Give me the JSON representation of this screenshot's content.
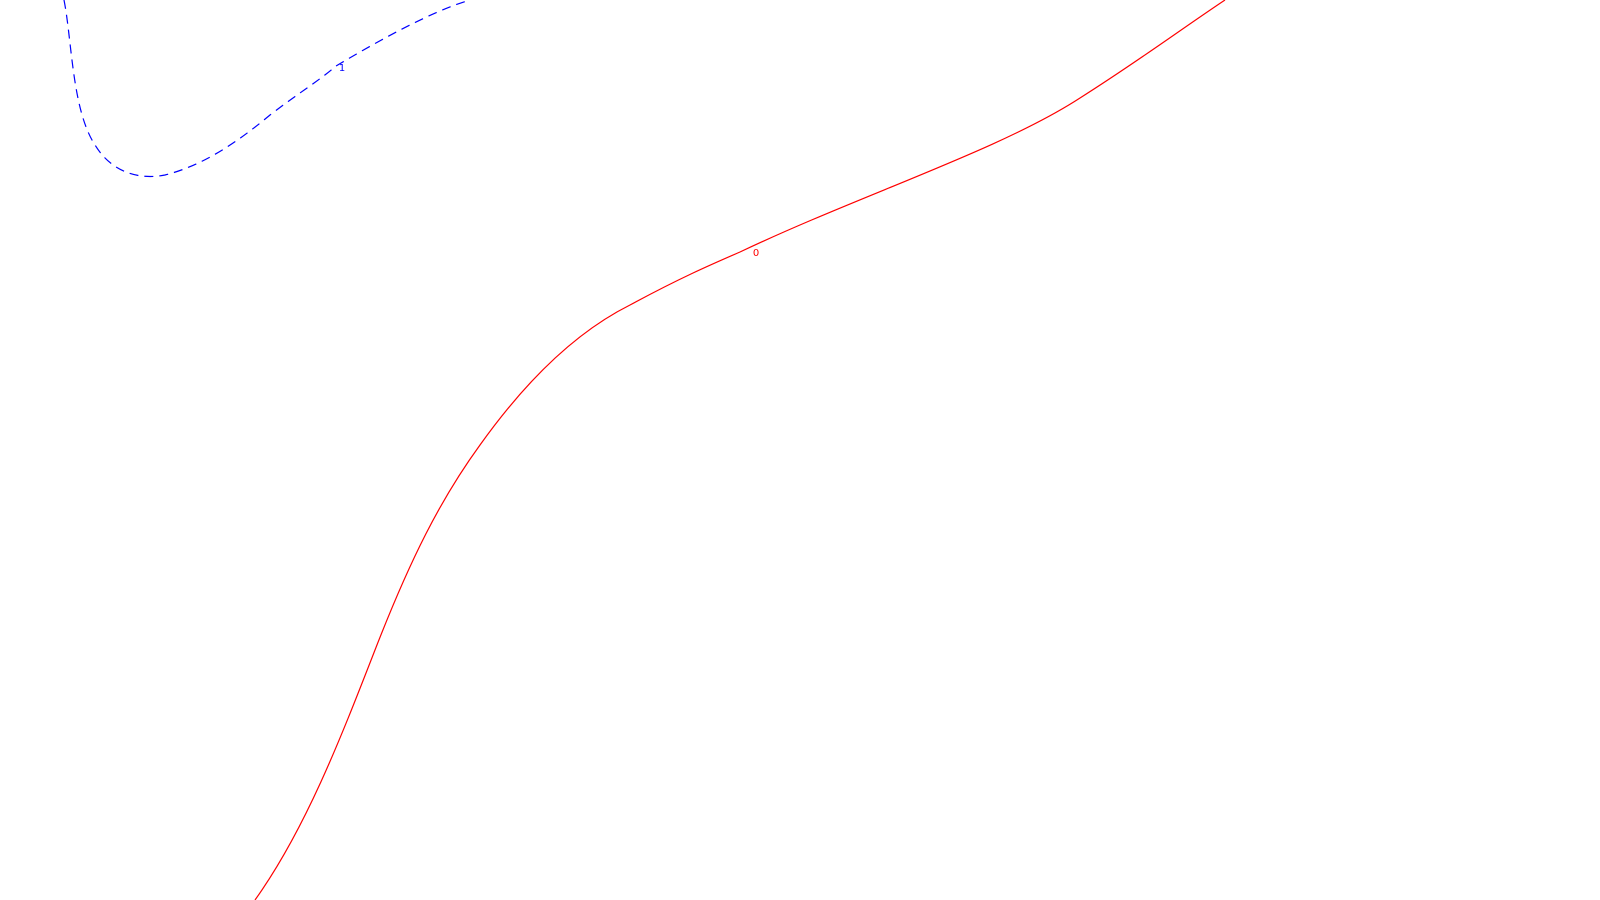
{
  "background_color": "#ffffff",
  "contours": [
    {
      "level_label": "1",
      "color": "#0000ff",
      "line_style": "dashed"
    },
    {
      "level_label": "0",
      "color": "#ff0000",
      "line_style": "solid"
    }
  ]
}
